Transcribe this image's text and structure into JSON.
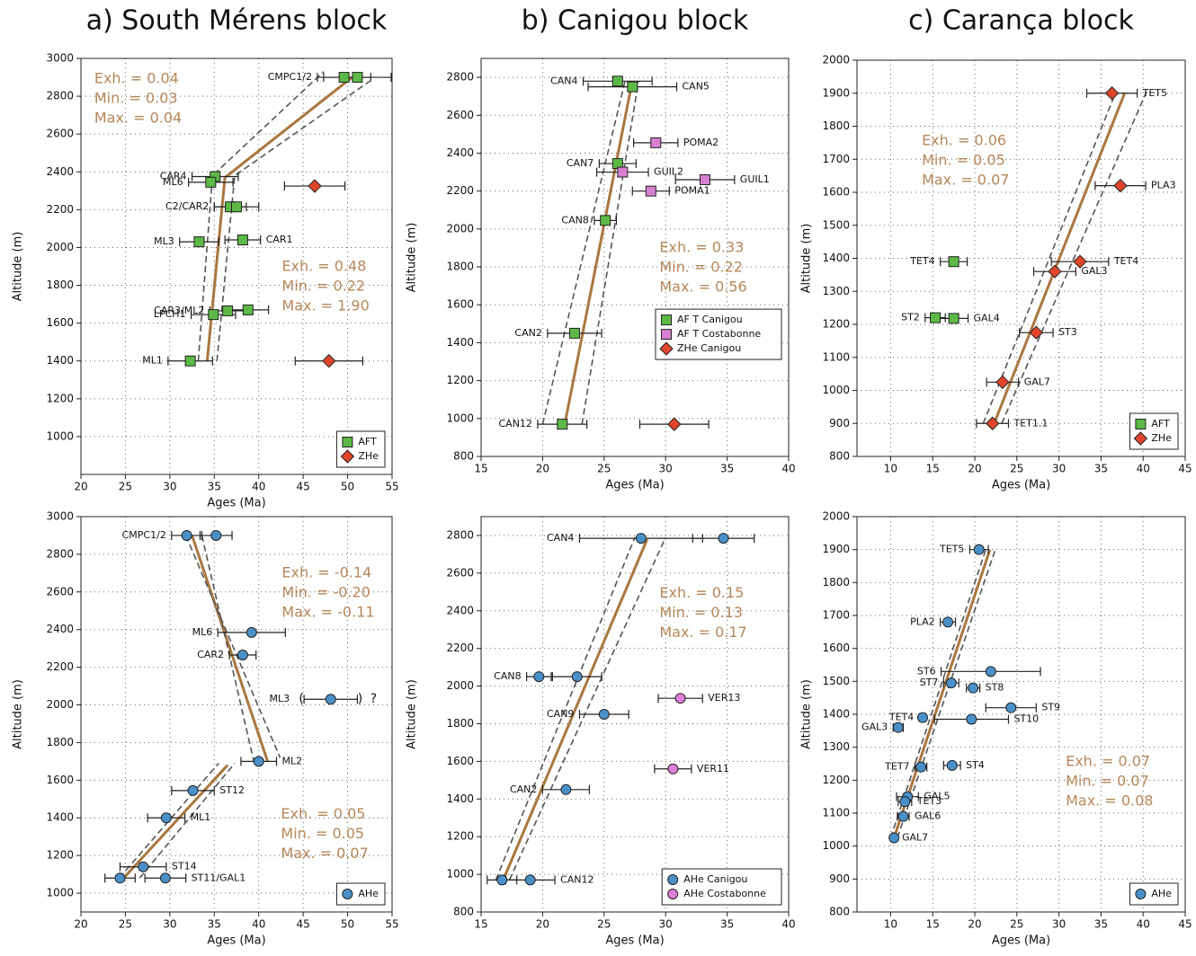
{
  "chart_data": [
    {
      "type": "scatter",
      "title": "a) South Mérens block",
      "xlabel": "Ages (Ma)",
      "ylabel": "Altitude (m)",
      "xlim": [
        20,
        55
      ],
      "ylim": [
        800,
        3000
      ],
      "xticks": [
        20,
        25,
        30,
        35,
        40,
        45,
        50,
        55
      ],
      "yticks": [
        1000,
        1200,
        1400,
        1600,
        1800,
        2000,
        2200,
        2400,
        2600,
        2800,
        3000
      ],
      "grid": true,
      "legend": "lower right",
      "series": [
        {
          "name": "AFT",
          "color": "#5cb947",
          "marker": "square",
          "x": [
            49.6,
            51.1,
            35.1,
            34.6,
            36.8,
            37.5,
            33.3,
            38.2,
            36.5,
            38.8,
            34.9,
            32.3
          ],
          "y": [
            2900,
            2900,
            2375,
            2345,
            2215,
            2215,
            2030,
            2040,
            1665,
            1670,
            1645,
            1400
          ],
          "xerr": [
            3,
            3.8,
            2.6,
            2.5,
            1.8,
            2.5,
            2.2,
            2,
            2,
            2.3,
            2.5,
            2.5
          ],
          "labels": [
            "CMPC1/2",
            null,
            "CAR4",
            "ML6",
            "C2/CAR2",
            null,
            "ML3",
            "CAR1",
            "CAR3/ML2",
            null,
            "LPCH1",
            "ML1"
          ]
        },
        {
          "name": "ZHe",
          "color": "#e0452b",
          "marker": "diamond",
          "x": [
            46.3,
            47.9
          ],
          "y": [
            2325,
            1400
          ],
          "xerr": [
            3.4,
            3.8
          ]
        }
      ],
      "fits": [
        {
          "style": "solid",
          "color": "#a9773f",
          "x": [
            34.2,
            36.2,
            50.5
          ],
          "y": [
            1400,
            2370,
            2900
          ]
        },
        {
          "style": "dashed",
          "color": "#555555",
          "x": [
            35.3,
            37.3,
            52.5
          ],
          "y": [
            1400,
            2380,
            2880
          ]
        },
        {
          "style": "dashed",
          "color": "#555555",
          "x": [
            33.2,
            34.8,
            47.3
          ],
          "y": [
            1400,
            2380,
            2930
          ]
        }
      ],
      "annotations": [
        [
          "Exh. = 0.04",
          "Min. = 0.03",
          "Max. = 0.04"
        ],
        [
          "Exh. = 0.48",
          "Min. = 0.22",
          "Max. = 1.90"
        ]
      ]
    },
    {
      "type": "scatter",
      "title": "b) Canigou block",
      "xlabel": "Ages (Ma)",
      "ylabel": "Altitude (m)",
      "xlim": [
        15,
        40
      ],
      "ylim": [
        800,
        2900
      ],
      "xticks": [
        15,
        20,
        25,
        30,
        35,
        40
      ],
      "yticks": [
        800,
        1000,
        1200,
        1400,
        1600,
        1800,
        2000,
        2200,
        2400,
        2600,
        2800
      ],
      "grid": true,
      "legend": "center right",
      "series": [
        {
          "name": "AF T Canigou",
          "color": "#5cb947",
          "marker": "square",
          "x": [
            26.1,
            27.3,
            26.1,
            25.1,
            22.6,
            21.6
          ],
          "y": [
            2780,
            2750,
            2345,
            2045,
            1450,
            970
          ],
          "xerr": [
            2.8,
            3.6,
            1.5,
            0.9,
            2.2,
            2
          ],
          "labels": [
            "CAN4",
            "CAN5",
            "CAN7",
            "CAN8",
            "CAN2",
            "CAN12"
          ]
        },
        {
          "name": "AF T Costabonne",
          "color": "#d77fd0",
          "marker": "square",
          "x": [
            29.2,
            26.5,
            33.2,
            28.8
          ],
          "y": [
            2455,
            2300,
            2260,
            2200
          ],
          "xerr": [
            1.8,
            2.1,
            2.4,
            1.5
          ],
          "labels": [
            "POMA2",
            "GUIL2",
            "GUIL1",
            "POMA1"
          ]
        },
        {
          "name": "ZHe Canigou",
          "color": "#e0452b",
          "marker": "diamond",
          "x": [
            30.7
          ],
          "y": [
            970
          ],
          "xerr": [
            2.8
          ]
        }
      ],
      "fits": [
        {
          "style": "solid",
          "color": "#a9773f",
          "x": [
            21.8,
            27.2
          ],
          "y": [
            970,
            2750
          ]
        },
        {
          "style": "dashed",
          "color": "#555555",
          "x": [
            20,
            26.7
          ],
          "y": [
            970,
            2780
          ]
        },
        {
          "style": "dashed",
          "color": "#555555",
          "x": [
            23.2,
            27.8
          ],
          "y": [
            970,
            2780
          ]
        }
      ],
      "annotations": [
        [
          "Exh. = 0.33",
          "Min. = 0.22",
          "Max. = 0.56"
        ]
      ]
    },
    {
      "type": "scatter",
      "title": "c) Carança block",
      "xlabel": "Ages (Ma)",
      "ylabel": "Altitude (m)",
      "xlim": [
        6,
        45
      ],
      "ylim": [
        800,
        2000
      ],
      "xticks": [
        10,
        15,
        20,
        25,
        30,
        35,
        40,
        45
      ],
      "yticks": [
        800,
        900,
        1000,
        1100,
        1200,
        1300,
        1400,
        1500,
        1600,
        1700,
        1800,
        1900,
        2000
      ],
      "grid": true,
      "legend": "lower right",
      "series": [
        {
          "name": "AFT",
          "color": "#5cb947",
          "marker": "square",
          "x": [
            17.5,
            15.3,
            17.5
          ],
          "y": [
            1390,
            1220,
            1218
          ],
          "xerr": [
            1.6,
            1.2,
            1.7
          ],
          "labels": [
            "TET4",
            "ST2",
            "GAL4"
          ]
        },
        {
          "name": "ZHe",
          "color": "#e0452b",
          "marker": "diamond",
          "x": [
            36.3,
            37.3,
            32.5,
            29.5,
            27.3,
            23.3,
            22.1
          ],
          "y": [
            1900,
            1620,
            1390,
            1360,
            1175,
            1025,
            900
          ],
          "xerr": [
            3,
            3,
            3.4,
            2.5,
            2,
            1.9,
            1.9
          ],
          "labels": [
            "TET5",
            "PLA3",
            "TET4",
            "GAL3",
            "ST3",
            "GAL7",
            "TET1.1"
          ]
        }
      ],
      "fits": [
        {
          "style": "solid",
          "color": "#a9773f",
          "x": [
            22.3,
            37.8
          ],
          "y": [
            900,
            1900
          ]
        },
        {
          "style": "dashed",
          "color": "#555555",
          "x": [
            21,
            36.7
          ],
          "y": [
            900,
            1900
          ]
        },
        {
          "style": "dashed",
          "color": "#555555",
          "x": [
            23.2,
            40.5
          ],
          "y": [
            900,
            1910
          ]
        }
      ],
      "annotations": [
        [
          "Exh. = 0.06",
          "Min. = 0.05",
          "Max. = 0.07"
        ]
      ]
    },
    {
      "type": "scatter",
      "xlabel": "Ages (Ma)",
      "ylabel": "Altitude (m)",
      "xlim": [
        20,
        55
      ],
      "ylim": [
        900,
        3000
      ],
      "xticks": [
        20,
        25,
        30,
        35,
        40,
        45,
        50,
        55
      ],
      "yticks": [
        1000,
        1200,
        1400,
        1600,
        1800,
        2000,
        2200,
        2400,
        2600,
        2800,
        3000
      ],
      "grid": true,
      "legend": "lower right",
      "series": [
        {
          "name": "AHe",
          "color": "#4a90c8",
          "marker": "circle",
          "x": [
            31.9,
            35.2,
            39.2,
            38.2,
            48.1,
            40,
            32.6,
            29.6,
            27,
            24.4,
            29.5
          ],
          "y": [
            2900,
            2900,
            2385,
            2265,
            2030,
            1700,
            1545,
            1400,
            1140,
            1080,
            1080
          ],
          "xerr": [
            1.7,
            1.8,
            3.8,
            1.5,
            3,
            2,
            2.4,
            2.1,
            2.6,
            1.7,
            2.3
          ],
          "labels": [
            "CMPC1/2",
            null,
            "ML6",
            "CAR2",
            "ML3",
            "ML2",
            "ST12",
            "ML1",
            "ST14",
            null,
            "ST11/GAL1"
          ]
        }
      ],
      "fits": [
        {
          "style": "solid",
          "color": "#a9773f",
          "x": [
            32.5,
            41
          ],
          "y": [
            2900,
            1700
          ]
        },
        {
          "style": "dashed",
          "color": "#555555",
          "x": [
            31.8,
            42.4
          ],
          "y": [
            2900,
            1720
          ]
        },
        {
          "style": "dashed",
          "color": "#555555",
          "x": [
            33.6,
            39.5
          ],
          "y": [
            2900,
            1690
          ]
        },
        {
          "style": "solid",
          "color": "#a9773f",
          "x": [
            24.8,
            36.5
          ],
          "y": [
            1080,
            1680
          ]
        },
        {
          "style": "dashed",
          "color": "#555555",
          "x": [
            24.3,
            35.5
          ],
          "y": [
            1080,
            1690
          ]
        },
        {
          "style": "dashed",
          "color": "#555555",
          "x": [
            26.6,
            37.3
          ],
          "y": [
            1080,
            1690
          ]
        }
      ],
      "annotations": [
        [
          "Exh. = -0.14",
          "Min. = -0.20",
          "Max. = -0.11"
        ],
        [
          "Exh. = 0.05",
          "Min. = 0.05",
          "Max. = 0.07"
        ]
      ],
      "note": [
        "(",
        ")",
        "?"
      ]
    },
    {
      "type": "scatter",
      "xlabel": "Ages (Ma)",
      "ylabel": "Altitude (m)",
      "xlim": [
        15,
        40
      ],
      "ylim": [
        800,
        2900
      ],
      "xticks": [
        15,
        20,
        25,
        30,
        35,
        40
      ],
      "yticks": [
        800,
        1000,
        1200,
        1400,
        1600,
        1800,
        2000,
        2200,
        2400,
        2600,
        2800
      ],
      "grid": true,
      "legend": "lower right",
      "series": [
        {
          "name": "AHe Canigou",
          "color": "#4a90c8",
          "marker": "circle",
          "x": [
            28,
            34.7,
            19.7,
            22.8,
            25,
            21.9,
            16.7,
            19
          ],
          "y": [
            2785,
            2785,
            2050,
            2050,
            1850,
            1450,
            970,
            970
          ],
          "xerr": [
            5,
            2.5,
            1,
            2,
            2,
            1.9,
            1.2,
            2
          ],
          "labels": [
            "CAN4",
            null,
            "CAN8",
            null,
            "CAN9",
            "CAN2",
            null,
            "CAN12"
          ]
        },
        {
          "name": "AHe Costabonne",
          "color": "#e07fd8",
          "marker": "circle",
          "x": [
            31.2,
            30.6
          ],
          "y": [
            1935,
            1560
          ],
          "xerr": [
            1.8,
            1.5
          ],
          "labels": [
            "VER13",
            "VER11"
          ]
        }
      ],
      "fits": [
        {
          "style": "solid",
          "color": "#a9773f",
          "x": [
            16.8,
            28.5
          ],
          "y": [
            970,
            2780
          ]
        },
        {
          "style": "dashed",
          "color": "#555555",
          "x": [
            16.2,
            27.5
          ],
          "y": [
            970,
            2790
          ]
        },
        {
          "style": "dashed",
          "color": "#555555",
          "x": [
            17.3,
            30
          ],
          "y": [
            970,
            2790
          ]
        }
      ],
      "annotations": [
        [
          "Exh. = 0.15",
          "Min. = 0.13",
          "Max. = 0.17"
        ]
      ]
    },
    {
      "type": "scatter",
      "xlabel": "Ages (Ma)",
      "ylabel": "Altitude (m)",
      "xlim": [
        6,
        45
      ],
      "ylim": [
        800,
        2000
      ],
      "xticks": [
        10,
        15,
        20,
        25,
        30,
        35,
        40,
        45
      ],
      "yticks": [
        800,
        900,
        1000,
        1100,
        1200,
        1300,
        1400,
        1500,
        1600,
        1700,
        1800,
        1900,
        2000
      ],
      "grid": true,
      "legend": "lower right",
      "series": [
        {
          "name": "AHe",
          "color": "#4a90c8",
          "marker": "circle",
          "x": [
            20.5,
            16.8,
            21.9,
            17.2,
            19.8,
            24.3,
            13.8,
            19.6,
            10.9,
            13.6,
            17.3,
            12,
            11.7,
            11.5,
            10.4
          ],
          "y": [
            1900,
            1680,
            1530,
            1495,
            1480,
            1420,
            1390,
            1385,
            1360,
            1240,
            1245,
            1150,
            1135,
            1090,
            1025
          ],
          "xerr": [
            1.1,
            0.9,
            5.9,
            0.9,
            0.8,
            3,
            0.4,
            4.4,
            0.6,
            0.7,
            1,
            1.3,
            0.8,
            0.7,
            0.3
          ],
          "labels": [
            "TET5",
            "PLA2",
            "ST6",
            "ST7",
            "ST8",
            "ST9",
            "TET4",
            "ST10",
            "GAL3",
            "TET7",
            "ST4",
            "GAL5",
            "TET3",
            "GAL6",
            "GAL7"
          ]
        }
      ],
      "fits": [
        {
          "style": "solid",
          "color": "#a9773f",
          "x": [
            10.4,
            21.8
          ],
          "y": [
            1025,
            1900
          ]
        },
        {
          "style": "dashed",
          "color": "#555555",
          "x": [
            10,
            21.3
          ],
          "y": [
            1025,
            1900
          ]
        },
        {
          "style": "dashed",
          "color": "#555555",
          "x": [
            10.8,
            22.5
          ],
          "y": [
            1025,
            1905
          ]
        }
      ],
      "annotations": [
        [
          "Exh. = 0.07",
          "Min. = 0.07",
          "Max. = 0.08"
        ]
      ]
    }
  ]
}
